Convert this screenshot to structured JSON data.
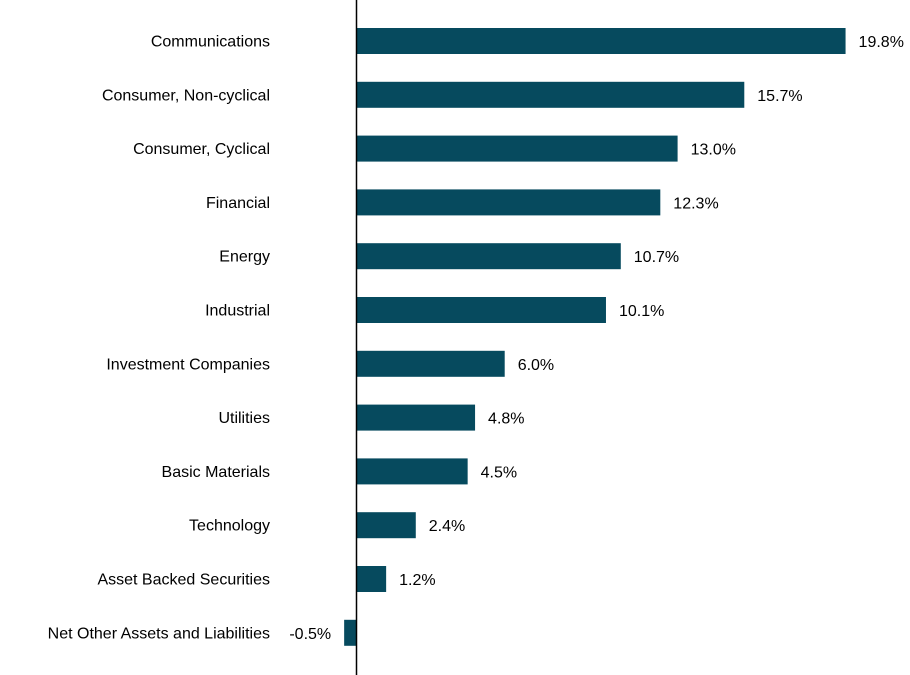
{
  "chart_data": {
    "type": "bar",
    "orientation": "horizontal",
    "categories": [
      "Communications",
      "Consumer, Non-cyclical",
      "Consumer, Cyclical",
      "Financial",
      "Energy",
      "Industrial",
      "Investment Companies",
      "Utilities",
      "Basic Materials",
      "Technology",
      "Asset Backed Securities",
      "Net Other Assets and Liabilities"
    ],
    "values": [
      19.8,
      15.7,
      13.0,
      12.3,
      10.7,
      10.1,
      6.0,
      4.8,
      4.5,
      2.4,
      1.2,
      -0.5
    ],
    "value_labels": [
      "19.8%",
      "15.7%",
      "13.0%",
      "12.3%",
      "10.7%",
      "10.1%",
      "6.0%",
      "4.8%",
      "4.5%",
      "2.4%",
      "1.2%",
      "-0.5%"
    ],
    "title": "",
    "xlabel": "",
    "ylabel": "",
    "unit": "%",
    "bar_color": "#064a5e",
    "axis_color": "#000000",
    "grid": false,
    "legend": "none"
  }
}
